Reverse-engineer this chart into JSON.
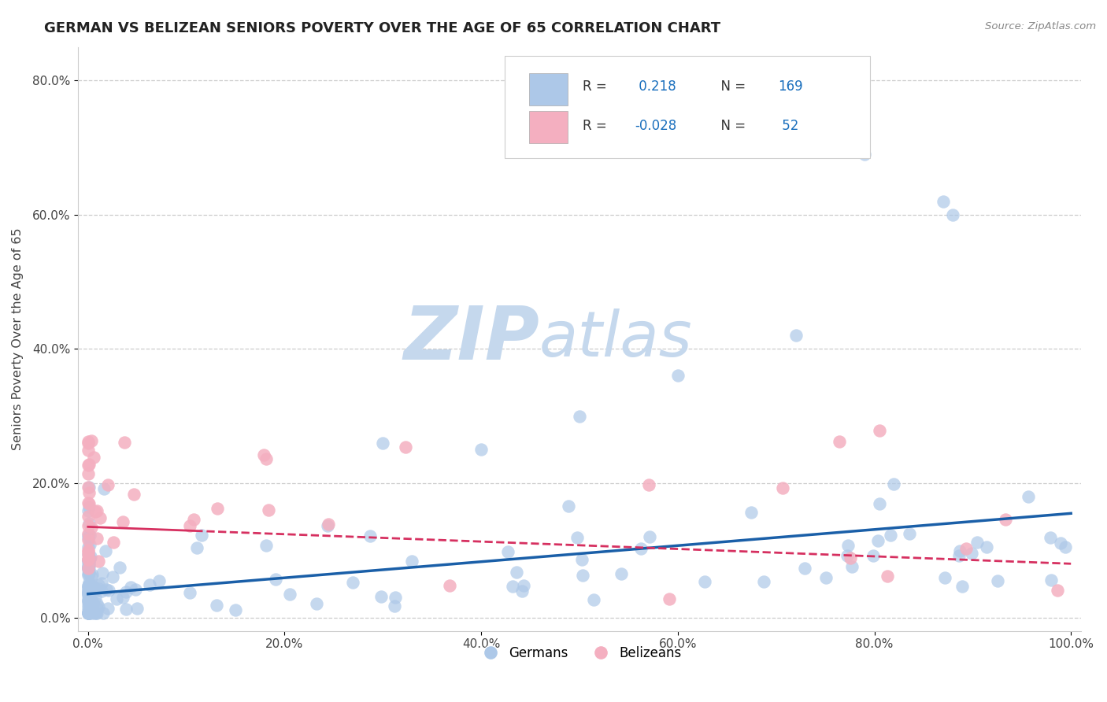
{
  "title": "GERMAN VS BELIZEAN SENIORS POVERTY OVER THE AGE OF 65 CORRELATION CHART",
  "source": "Source: ZipAtlas.com",
  "ylabel": "Seniors Poverty Over the Age of 65",
  "xlim": [
    -0.01,
    1.01
  ],
  "ylim": [
    -0.02,
    0.85
  ],
  "xticks": [
    0.0,
    0.2,
    0.4,
    0.6,
    0.8,
    1.0
  ],
  "xticklabels": [
    "0.0%",
    "20.0%",
    "40.0%",
    "60.0%",
    "80.0%",
    "100.0%"
  ],
  "yticks": [
    0.0,
    0.2,
    0.4,
    0.6,
    0.8
  ],
  "yticklabels": [
    "0.0%",
    "20.0%",
    "40.0%",
    "60.0%",
    "80.0%"
  ],
  "german_R": 0.218,
  "german_N": 169,
  "belizean_R": -0.028,
  "belizean_N": 52,
  "german_color": "#adc8e8",
  "german_line_color": "#1a5fa8",
  "belizean_color": "#f4afc0",
  "belizean_line_color": "#d63060",
  "background_color": "#ffffff",
  "title_color": "#222222",
  "watermark_zip_color": "#c5d8ed",
  "watermark_atlas_color": "#c5d8ed",
  "legend_R_color": "#1a6fbd",
  "legend_label_color": "#333333"
}
